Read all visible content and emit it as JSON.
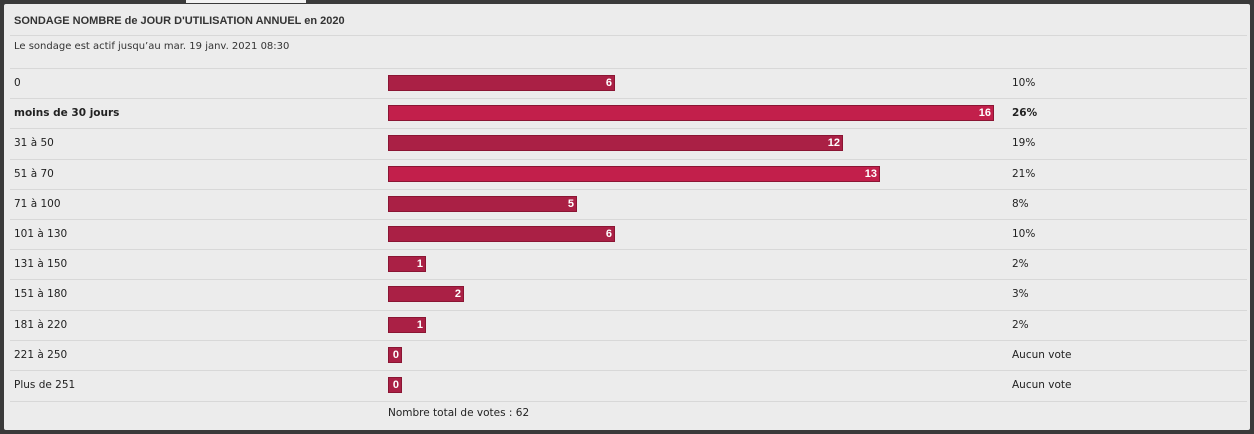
{
  "poll": {
    "title": "SONDAGE NOMBRE de JOUR D'UTILISATION ANNUEL en 2020",
    "status": "Le sondage est actif jusqu’au mar. 19 janv. 2021 08:30",
    "total_label": "Nombre total de votes : 62",
    "total_votes": 62,
    "max_votes": 16,
    "bar_color": "#aa2045",
    "bar_color_alt": "#c21f4b",
    "options": [
      {
        "label": "0",
        "votes": 6,
        "count": "6",
        "percent": "10%"
      },
      {
        "label": "moins de 30 jours",
        "votes": 16,
        "count": "16",
        "percent": "26%",
        "winner": true
      },
      {
        "label": "31 à 50",
        "votes": 12,
        "count": "12",
        "percent": "19%"
      },
      {
        "label": "51 à 70",
        "votes": 13,
        "count": "13",
        "percent": "21%"
      },
      {
        "label": "71 à 100",
        "votes": 5,
        "count": "5",
        "percent": "8%"
      },
      {
        "label": "101 à 130",
        "votes": 6,
        "count": "6",
        "percent": "10%"
      },
      {
        "label": "131 à 150",
        "votes": 1,
        "count": "1",
        "percent": "2%"
      },
      {
        "label": "151 à 180",
        "votes": 2,
        "count": "2",
        "percent": "3%"
      },
      {
        "label": "181 à 220",
        "votes": 1,
        "count": "1",
        "percent": "2%"
      },
      {
        "label": "221 à 250",
        "votes": 0,
        "count": "0",
        "percent": "Aucun vote"
      },
      {
        "label": "Plus de 251",
        "votes": 0,
        "count": "0",
        "percent": "Aucun vote"
      }
    ]
  }
}
